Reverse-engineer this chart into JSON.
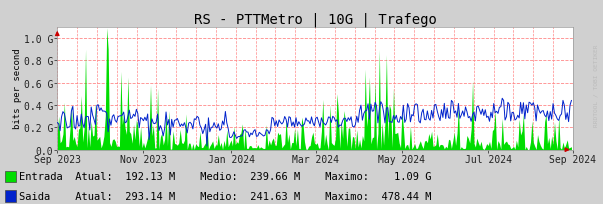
{
  "title": "RS - PTTMetro | 10G | Trafego",
  "ylabel": "bits per second",
  "background_color": "#d0d0d0",
  "plot_bg_color": "#ffffff",
  "grid_color": "#ff8888",
  "ylim": [
    0,
    1100000000.0
  ],
  "ytick_vals": [
    0.0,
    200000000.0,
    400000000.0,
    600000000.0,
    800000000.0,
    1000000000.0
  ],
  "ytick_labels": [
    "0.0",
    "0.2 G",
    "0.4 G",
    "0.6 G",
    "0.8 G",
    "1.0 G"
  ],
  "entrada_color": "#00dd00",
  "saida_color": "#0022cc",
  "arrow_color": "#cc0000",
  "xtick_labels": [
    "Sep 2023",
    "Nov 2023",
    "Jan 2024",
    "Mar 2024",
    "May 2024",
    "Jul 2024",
    "Sep 2024"
  ],
  "xtick_positions": [
    0,
    61,
    123,
    183,
    244,
    305,
    365
  ],
  "watermark": "RRDTOOL / TOBI OETIKER",
  "title_fontsize": 10,
  "axis_fontsize": 7,
  "legend_fontsize": 7.5,
  "legend": [
    {
      "label": "Entrada",
      "color": "#00dd00",
      "atual": "192.13 M",
      "medio": "239.66 M",
      "maximo": "1.09 G"
    },
    {
      "label": "Saida",
      "color": "#0022cc",
      "atual": "293.14 M",
      "medio": "241.63 M",
      "maximo": "478.44 M"
    }
  ]
}
